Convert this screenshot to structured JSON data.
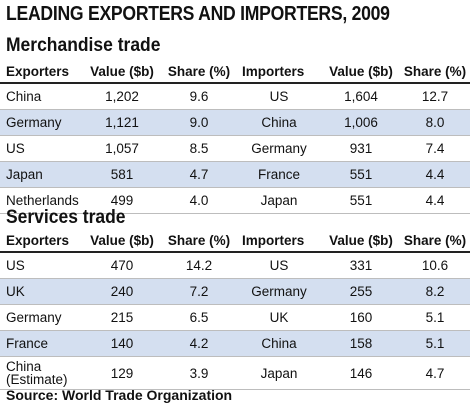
{
  "title": "LEADING EXPORTERS AND IMPORTERS, 2009",
  "source": "Source: World Trade Organization",
  "colors": {
    "row_stripe": "#d4dff0",
    "rule": "#222222"
  },
  "chart_data": [
    {
      "type": "table",
      "title": "Merchandise trade",
      "columns": [
        "Exporters",
        "Value ($b)",
        "Share (%)",
        "Importers",
        "Value ($b)",
        "Share (%)"
      ],
      "rows": [
        [
          "China",
          "1,202",
          "9.6",
          "US",
          "1,604",
          "12.7"
        ],
        [
          "Germany",
          "1,121",
          "9.0",
          "China",
          "1,006",
          "8.0"
        ],
        [
          "US",
          "1,057",
          "8.5",
          "Germany",
          "931",
          "7.4"
        ],
        [
          "Japan",
          "581",
          "4.7",
          "France",
          "551",
          "4.4"
        ],
        [
          "Netherlands",
          "499",
          "4.0",
          "Japan",
          "551",
          "4.4"
        ]
      ]
    },
    {
      "type": "table",
      "title": "Services trade",
      "columns": [
        "Exporters",
        "Value ($b)",
        "Share (%)",
        "Importers",
        "Value ($b)",
        "Share (%)"
      ],
      "rows": [
        [
          "US",
          "470",
          "14.2",
          "US",
          "331",
          "10.6"
        ],
        [
          "UK",
          "240",
          "7.2",
          "Germany",
          "255",
          "8.2"
        ],
        [
          "Germany",
          "215",
          "6.5",
          "UK",
          "160",
          "5.1"
        ],
        [
          "France",
          "140",
          "4.2",
          "China",
          "158",
          "5.1"
        ],
        [
          "China\n(Estimate)",
          "129",
          "3.9",
          "Japan",
          "146",
          "4.7"
        ]
      ]
    }
  ]
}
